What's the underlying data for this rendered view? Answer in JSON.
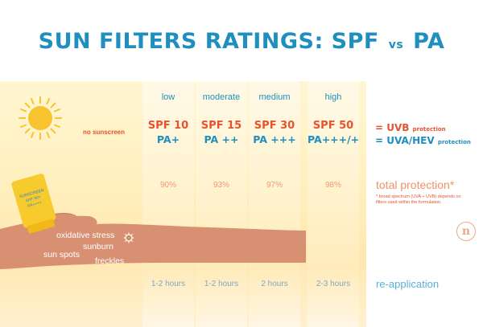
{
  "title": {
    "main": "SUN FILTERS RATINGS: SPF",
    "vs": "vs",
    "tail": "PA"
  },
  "no_sunscreen_label": "no sunscreen",
  "columns": [
    {
      "level": "low",
      "spf": "SPF 10",
      "pa": "PA+",
      "protection": "90%",
      "reapplication": "1-2 hours"
    },
    {
      "level": "moderate",
      "spf": "SPF 15",
      "pa": "PA ++",
      "protection": "93%",
      "reapplication": "1-2 hours"
    },
    {
      "level": "medium",
      "spf": "SPF 30",
      "pa": "PA +++",
      "protection": "97%",
      "reapplication": "2 hours"
    },
    {
      "level": "high",
      "spf": "SPF 50",
      "pa": "PA+++/+",
      "protection": "98%",
      "reapplication": "2-3 hours"
    }
  ],
  "legend": {
    "uvb": "= UVB",
    "uvb_small": "protection",
    "uva": "= UVA/HEV",
    "uva_small": "protection",
    "total": "total protection*",
    "footnote": "* broad spectrum (UVA + UVB) depends on filters used within the formulation",
    "reapplication": "re-application"
  },
  "skin_labels": [
    "oxidative stress",
    "sunburn",
    "sun spots",
    "freckles"
  ],
  "bottle_text": [
    "SUNSCREEN",
    "SPF 50+",
    "PA++++"
  ],
  "logo_letter": "n",
  "colors": {
    "title_blue": "#1f8fbf",
    "spf_orange": "#e4542e",
    "percent_peach": "#f09a6e",
    "sun_yellow": "#f7c430",
    "skin": "#d89072"
  },
  "icons": {
    "sun": "sun-icon",
    "virus": "virus-icon",
    "bottle": "sunscreen-bottle-icon",
    "logo": "brand-logo-icon"
  }
}
